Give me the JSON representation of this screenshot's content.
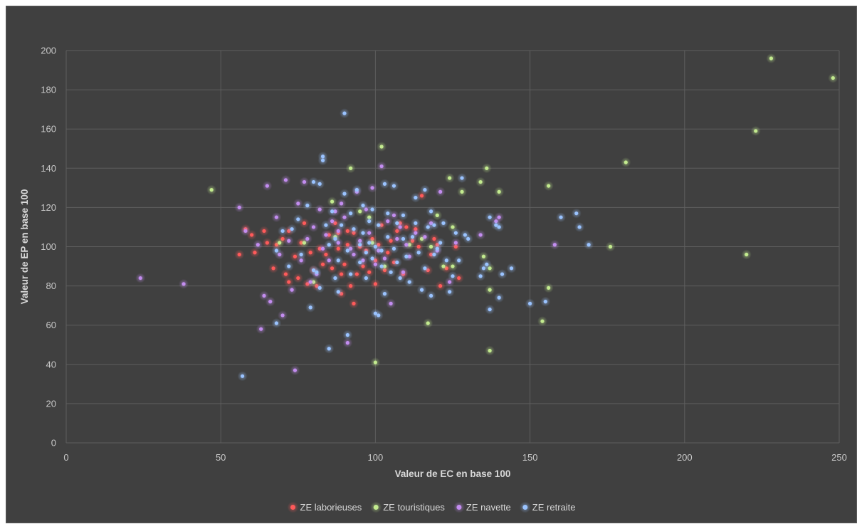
{
  "chart_data": {
    "type": "scatter",
    "xlabel": "Valeur de EC en base 100",
    "ylabel": "Valeur de EP en base 100",
    "xlim": [
      0,
      250
    ],
    "ylim": [
      0,
      200
    ],
    "xticks": [
      0,
      50,
      100,
      150,
      200,
      250
    ],
    "yticks": [
      0,
      20,
      40,
      60,
      80,
      100,
      120,
      140,
      160,
      180,
      200
    ],
    "grid": true,
    "legend_position": "bottom",
    "background": "#404040",
    "series": [
      {
        "name": "ZE laborieuses",
        "color": "#ff5a5a",
        "points": [
          [
            56,
            96
          ],
          [
            58,
            109
          ],
          [
            60,
            106
          ],
          [
            61,
            97
          ],
          [
            64,
            108
          ],
          [
            65,
            102
          ],
          [
            67,
            89
          ],
          [
            68,
            101
          ],
          [
            70,
            104
          ],
          [
            71,
            86
          ],
          [
            72,
            82
          ],
          [
            72,
            108
          ],
          [
            74,
            95
          ],
          [
            75,
            84
          ],
          [
            76,
            102
          ],
          [
            77,
            112
          ],
          [
            78,
            81
          ],
          [
            79,
            97
          ],
          [
            80,
            88
          ],
          [
            81,
            80
          ],
          [
            82,
            99
          ],
          [
            83,
            91
          ],
          [
            84,
            96
          ],
          [
            85,
            106
          ],
          [
            86,
            89
          ],
          [
            87,
            112
          ],
          [
            88,
            107
          ],
          [
            88,
            99
          ],
          [
            89,
            86
          ],
          [
            89,
            76
          ],
          [
            90,
            91
          ],
          [
            91,
            101
          ],
          [
            91,
            108
          ],
          [
            92,
            80
          ],
          [
            93,
            71
          ],
          [
            93,
            107
          ],
          [
            94,
            86
          ],
          [
            95,
            100
          ],
          [
            96,
            90
          ],
          [
            97,
            98
          ],
          [
            98,
            87
          ],
          [
            99,
            104
          ],
          [
            100,
            93
          ],
          [
            100,
            81
          ],
          [
            101,
            101
          ],
          [
            102,
            111
          ],
          [
            103,
            88
          ],
          [
            104,
            97
          ],
          [
            105,
            103
          ],
          [
            106,
            92
          ],
          [
            107,
            108
          ],
          [
            108,
            112
          ],
          [
            109,
            86
          ],
          [
            110,
            110
          ],
          [
            112,
            103
          ],
          [
            113,
            109
          ],
          [
            114,
            100
          ],
          [
            115,
            126
          ],
          [
            117,
            88
          ],
          [
            118,
            96
          ],
          [
            119,
            104
          ],
          [
            120,
            101
          ],
          [
            121,
            80
          ],
          [
            123,
            89
          ],
          [
            126,
            100
          ],
          [
            127,
            84
          ]
        ]
      },
      {
        "name": "ZE touristiques",
        "color": "#c3eb8f",
        "points": [
          [
            47,
            129
          ],
          [
            69,
            102
          ],
          [
            77,
            102
          ],
          [
            80,
            82
          ],
          [
            86,
            123
          ],
          [
            87,
            105
          ],
          [
            92,
            140
          ],
          [
            95,
            118
          ],
          [
            98,
            115
          ],
          [
            99,
            102
          ],
          [
            100,
            41
          ],
          [
            102,
            151
          ],
          [
            103,
            90
          ],
          [
            111,
            101
          ],
          [
            115,
            104
          ],
          [
            117,
            61
          ],
          [
            118,
            100
          ],
          [
            120,
            116
          ],
          [
            122,
            90
          ],
          [
            124,
            135
          ],
          [
            125,
            110
          ],
          [
            125,
            90
          ],
          [
            128,
            128
          ],
          [
            134,
            133
          ],
          [
            135,
            95
          ],
          [
            136,
            140
          ],
          [
            137,
            47
          ],
          [
            137,
            89
          ],
          [
            137,
            78
          ],
          [
            140,
            128
          ],
          [
            154,
            62
          ],
          [
            156,
            79
          ],
          [
            156,
            131
          ],
          [
            176,
            100
          ],
          [
            181,
            143
          ],
          [
            220,
            96
          ],
          [
            223,
            159
          ],
          [
            228,
            196
          ],
          [
            248,
            186
          ]
        ]
      },
      {
        "name": "ZE navette",
        "color": "#c38df0",
        "points": [
          [
            24,
            84
          ],
          [
            38,
            81
          ],
          [
            56,
            120
          ],
          [
            58,
            108
          ],
          [
            62,
            101
          ],
          [
            63,
            58
          ],
          [
            64,
            75
          ],
          [
            65,
            131
          ],
          [
            66,
            72
          ],
          [
            68,
            115
          ],
          [
            69,
            96
          ],
          [
            70,
            65
          ],
          [
            71,
            134
          ],
          [
            72,
            103
          ],
          [
            73,
            78
          ],
          [
            74,
            37
          ],
          [
            75,
            122
          ],
          [
            76,
            93
          ],
          [
            77,
            133
          ],
          [
            78,
            104
          ],
          [
            79,
            82
          ],
          [
            80,
            110
          ],
          [
            81,
            86
          ],
          [
            82,
            119
          ],
          [
            83,
            99
          ],
          [
            84,
            106
          ],
          [
            85,
            93
          ],
          [
            86,
            113
          ],
          [
            87,
            118
          ],
          [
            88,
            102
          ],
          [
            88,
            108
          ],
          [
            89,
            122
          ],
          [
            90,
            115
          ],
          [
            91,
            51
          ],
          [
            92,
            99
          ],
          [
            93,
            96
          ],
          [
            94,
            128
          ],
          [
            95,
            103
          ],
          [
            96,
            93
          ],
          [
            97,
            119
          ],
          [
            98,
            107
          ],
          [
            99,
            130
          ],
          [
            100,
            91
          ],
          [
            101,
            98
          ],
          [
            102,
            141
          ],
          [
            103,
            94
          ],
          [
            104,
            113
          ],
          [
            105,
            71
          ],
          [
            106,
            116
          ],
          [
            107,
            104
          ],
          [
            108,
            110
          ],
          [
            109,
            87
          ],
          [
            110,
            101
          ],
          [
            111,
            95
          ],
          [
            113,
            107
          ],
          [
            116,
            105
          ],
          [
            118,
            112
          ],
          [
            120,
            98
          ],
          [
            121,
            128
          ],
          [
            124,
            82
          ],
          [
            126,
            102
          ],
          [
            134,
            106
          ],
          [
            139,
            113
          ],
          [
            140,
            115
          ],
          [
            158,
            101
          ]
        ]
      },
      {
        "name": "ZE retraite",
        "color": "#9ac3ff",
        "points": [
          [
            57,
            34
          ],
          [
            68,
            61
          ],
          [
            68,
            98
          ],
          [
            70,
            108
          ],
          [
            72,
            90
          ],
          [
            73,
            109
          ],
          [
            75,
            114
          ],
          [
            76,
            96
          ],
          [
            78,
            121
          ],
          [
            79,
            69
          ],
          [
            80,
            88
          ],
          [
            80,
            133
          ],
          [
            81,
            87
          ],
          [
            82,
            132
          ],
          [
            82,
            79
          ],
          [
            83,
            144
          ],
          [
            83,
            146
          ],
          [
            84,
            111
          ],
          [
            85,
            48
          ],
          [
            85,
            101
          ],
          [
            86,
            118
          ],
          [
            87,
            104
          ],
          [
            87,
            84
          ],
          [
            88,
            77
          ],
          [
            88,
            93
          ],
          [
            89,
            111
          ],
          [
            90,
            127
          ],
          [
            90,
            168
          ],
          [
            91,
            98
          ],
          [
            91,
            55
          ],
          [
            92,
            117
          ],
          [
            92,
            86
          ],
          [
            93,
            109
          ],
          [
            94,
            129
          ],
          [
            95,
            92
          ],
          [
            95,
            101
          ],
          [
            96,
            121
          ],
          [
            96,
            107
          ],
          [
            97,
            97
          ],
          [
            97,
            84
          ],
          [
            98,
            113
          ],
          [
            98,
            102
          ],
          [
            99,
            94
          ],
          [
            99,
            119
          ],
          [
            100,
            66
          ],
          [
            100,
            100
          ],
          [
            101,
            111
          ],
          [
            101,
            65
          ],
          [
            102,
            98
          ],
          [
            102,
            90
          ],
          [
            103,
            132
          ],
          [
            103,
            76
          ],
          [
            104,
            117
          ],
          [
            104,
            105
          ],
          [
            105,
            87
          ],
          [
            106,
            99
          ],
          [
            106,
            131
          ],
          [
            107,
            92
          ],
          [
            107,
            112
          ],
          [
            108,
            84
          ],
          [
            109,
            104
          ],
          [
            109,
            116
          ],
          [
            110,
            95
          ],
          [
            111,
            82
          ],
          [
            112,
            105
          ],
          [
            113,
            125
          ],
          [
            113,
            112
          ],
          [
            114,
            97
          ],
          [
            115,
            78
          ],
          [
            116,
            129
          ],
          [
            116,
            89
          ],
          [
            117,
            110
          ],
          [
            118,
            75
          ],
          [
            118,
            118
          ],
          [
            119,
            96
          ],
          [
            119,
            111
          ],
          [
            120,
            99
          ],
          [
            121,
            102
          ],
          [
            122,
            112
          ],
          [
            123,
            93
          ],
          [
            124,
            77
          ],
          [
            125,
            85
          ],
          [
            126,
            107
          ],
          [
            127,
            93
          ],
          [
            128,
            135
          ],
          [
            129,
            106
          ],
          [
            130,
            104
          ],
          [
            134,
            85
          ],
          [
            135,
            89
          ],
          [
            136,
            91
          ],
          [
            137,
            68
          ],
          [
            137,
            115
          ],
          [
            139,
            111
          ],
          [
            140,
            110
          ],
          [
            140,
            74
          ],
          [
            141,
            86
          ],
          [
            144,
            89
          ],
          [
            150,
            71
          ],
          [
            155,
            72
          ],
          [
            160,
            115
          ],
          [
            165,
            117
          ],
          [
            166,
            110
          ],
          [
            169,
            101
          ]
        ]
      }
    ]
  }
}
